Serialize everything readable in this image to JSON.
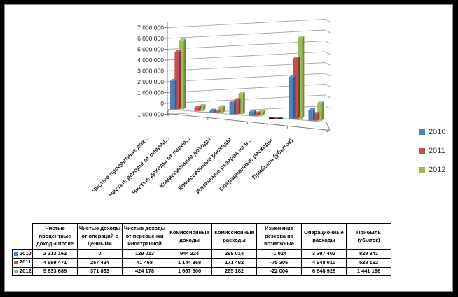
{
  "chart_data": {
    "type": "bar",
    "projection": "3d",
    "title": "",
    "xlabel": "",
    "ylabel": "",
    "categories": [
      "Чистые процентные дох...",
      "Чистые доходы от операц...",
      "Чистые доходы от перео...",
      "Комиссионные доходы",
      "Комиссионные расходы",
      "Изменение резерва на в...",
      "Операционные расходы",
      "Прибыль (убыток)"
    ],
    "series": [
      {
        "name": "2010",
        "color": "#4f81bd",
        "values": [
          2313162,
          0,
          129013,
          944224,
          298014,
          -1024,
          3397402,
          829841
        ]
      },
      {
        "name": "2011",
        "color": "#c0504d",
        "values": [
          4689471,
          257434,
          41468,
          1144358,
          171492,
          -75305,
          4948010,
          528162
        ]
      },
      {
        "name": "2012",
        "color": "#9bbb59",
        "values": [
          5633688,
          371833,
          424178,
          1667500,
          265182,
          -22004,
          6648926,
          1441196
        ]
      }
    ],
    "ylim": [
      -1000000,
      7000000
    ],
    "ytick_step": 1000000,
    "ytick_labels": [
      "7 000 000",
      "6 000 000",
      "5 000 000",
      "4 000 000",
      "3 000 000",
      "2 000 000",
      "1 000 000",
      "0",
      "-1 000 000"
    ],
    "grid": true,
    "legend_position": "right"
  },
  "legend": {
    "items": [
      {
        "label": "2010",
        "color": "#4f81bd"
      },
      {
        "label": "2011",
        "color": "#c0504d"
      },
      {
        "label": "2012",
        "color": "#9bbb59"
      }
    ]
  },
  "table": {
    "columns": [
      "Чистые процентные доходы после",
      "Чистые доходы от операций с ценными",
      "Чистые доходы от переоценки иностранной",
      "Комиссионные доходы",
      "Комиссионные расходы",
      "Изменение резерва на возможные",
      "Операционные расходы",
      "Прибыль (убыток)"
    ],
    "rows": [
      {
        "label": "2010",
        "swatch": "#4f81bd",
        "cells": [
          "2 313 162",
          "0",
          "129 013",
          "944 224",
          "298 014",
          "-1 024",
          "3 397 402",
          "829 841"
        ]
      },
      {
        "label": "2011",
        "swatch": "#c0504d",
        "cells": [
          "4 689 471",
          "257 434",
          "41 468",
          "1 144 358",
          "171 492",
          "-75 305",
          "4 948 010",
          "528 162"
        ]
      },
      {
        "label": "2012",
        "swatch": "#9bbb59",
        "cells": [
          "5 633 688",
          "371 833",
          "424 178",
          "1 667 500",
          "265 182",
          "-22 004",
          "6 648 926",
          "1 441 196"
        ]
      }
    ]
  }
}
